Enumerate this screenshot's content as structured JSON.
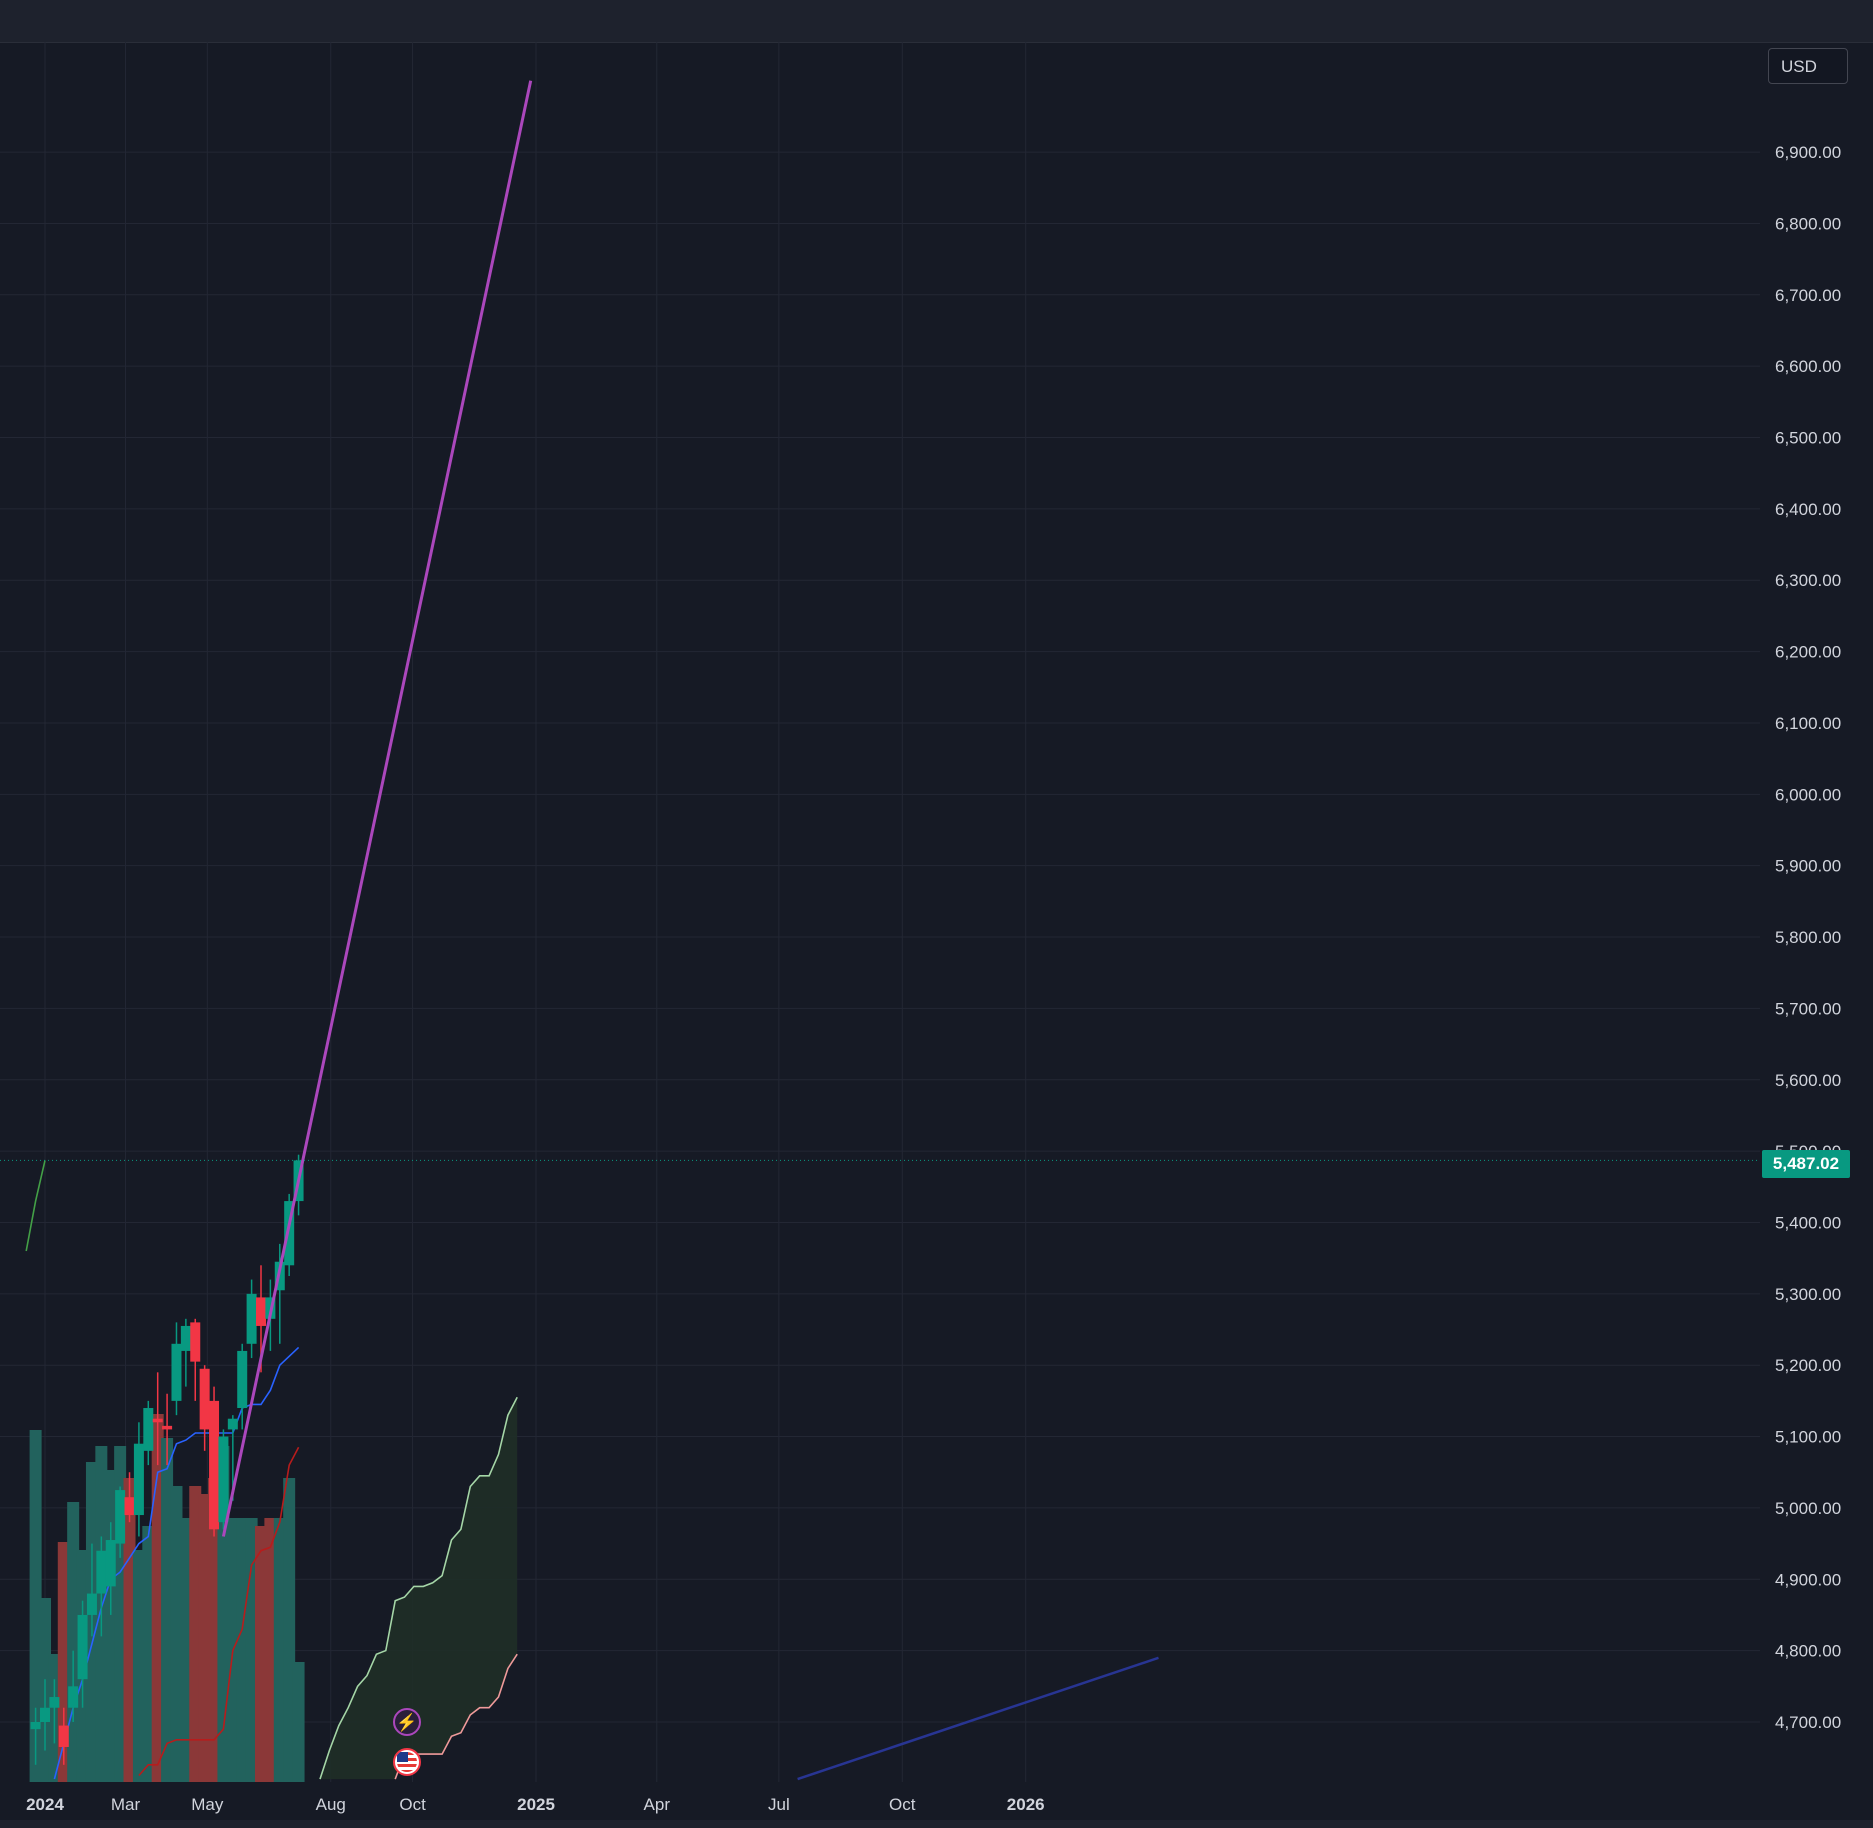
{
  "toolbar": {
    "currency_label": "USD"
  },
  "current_price": {
    "label": "5,487.02",
    "value": 5487.02,
    "color": "#089981"
  },
  "colors": {
    "background": "#161a25",
    "grid": "#232734",
    "up": "#089981",
    "down": "#f23645",
    "volume_up": "#22625d",
    "volume_down": "#8b3838",
    "tenkan": "#2962ff",
    "kijun": "#b71c1c",
    "trendline": "#ab47bc",
    "cloud_upper": "#a5d6a7",
    "cloud_lower": "#ef9a9a",
    "cloud_fill": "#1f2f27",
    "long_trend": "#283593",
    "green_line": "#43a047",
    "axis_text": "#d1d4dc"
  },
  "icons": {
    "events": [
      "lightning-icon",
      "us-flag-icon"
    ]
  },
  "chart_data": {
    "type": "candlestick",
    "title": "",
    "xlabel": "",
    "ylabel": "",
    "ylim": [
      4620,
      7020
    ],
    "yticks": [
      "4,700.00",
      "4,800.00",
      "4,900.00",
      "5,000.00",
      "5,100.00",
      "5,200.00",
      "5,300.00",
      "5,400.00",
      "5,500.00",
      "5,600.00",
      "5,700.00",
      "5,800.00",
      "5,900.00",
      "6,000.00",
      "6,100.00",
      "6,200.00",
      "6,300.00",
      "6,400.00",
      "6,500.00",
      "6,600.00",
      "6,700.00",
      "6,800.00",
      "6,900.00"
    ],
    "xticks": [
      {
        "label": "2024",
        "date": "2024-01-01",
        "bold": true
      },
      {
        "label": "Mar",
        "date": "2024-03-01",
        "bold": false
      },
      {
        "label": "May",
        "date": "2024-05-01",
        "bold": false
      },
      {
        "label": "Aug",
        "date": "2024-08-01",
        "bold": false
      },
      {
        "label": "Oct",
        "date": "2024-10-01",
        "bold": false
      },
      {
        "label": "2025",
        "date": "2025-01-01",
        "bold": true
      },
      {
        "label": "Apr",
        "date": "2025-04-01",
        "bold": false
      },
      {
        "label": "Jul",
        "date": "2025-07-01",
        "bold": false
      },
      {
        "label": "Oct",
        "date": "2025-10-01",
        "bold": false
      },
      {
        "label": "2026",
        "date": "2026-01-01",
        "bold": true
      }
    ],
    "grid": true,
    "candles": [
      {
        "date": "2023-12-25",
        "open": 4690,
        "high": 4720,
        "low": 4640,
        "close": 4700
      },
      {
        "date": "2024-01-01",
        "open": 4700,
        "high": 4760,
        "low": 4660,
        "close": 4720
      },
      {
        "date": "2024-01-08",
        "open": 4720,
        "high": 4760,
        "low": 4670,
        "close": 4735
      },
      {
        "date": "2024-01-15",
        "open": 4695,
        "high": 4720,
        "low": 4640,
        "close": 4665
      },
      {
        "date": "2024-01-22",
        "open": 4720,
        "high": 4800,
        "low": 4700,
        "close": 4750
      },
      {
        "date": "2024-01-29",
        "open": 4760,
        "high": 4870,
        "low": 4720,
        "close": 4850
      },
      {
        "date": "2024-02-05",
        "open": 4850,
        "high": 4950,
        "low": 4820,
        "close": 4880
      },
      {
        "date": "2024-02-12",
        "open": 4880,
        "high": 4960,
        "low": 4820,
        "close": 4940
      },
      {
        "date": "2024-02-19",
        "open": 4890,
        "high": 4980,
        "low": 4850,
        "close": 4955
      },
      {
        "date": "2024-02-26",
        "open": 4950,
        "high": 5030,
        "low": 4930,
        "close": 5025
      },
      {
        "date": "2024-03-04",
        "open": 5015,
        "high": 5050,
        "low": 4980,
        "close": 4990
      },
      {
        "date": "2024-03-11",
        "open": 4990,
        "high": 5120,
        "low": 4960,
        "close": 5090
      },
      {
        "date": "2024-03-18",
        "open": 5080,
        "high": 5150,
        "low": 5060,
        "close": 5140
      },
      {
        "date": "2024-03-25",
        "open": 5125,
        "high": 5190,
        "low": 5060,
        "close": 5120
      },
      {
        "date": "2024-04-01",
        "open": 5115,
        "high": 5160,
        "low": 5060,
        "close": 5110
      },
      {
        "date": "2024-04-08",
        "open": 5150,
        "high": 5260,
        "low": 5130,
        "close": 5230
      },
      {
        "date": "2024-04-15",
        "open": 5220,
        "high": 5265,
        "low": 5170,
        "close": 5255
      },
      {
        "date": "2024-04-22",
        "open": 5260,
        "high": 5265,
        "low": 5150,
        "close": 5205
      },
      {
        "date": "2024-04-29",
        "open": 5195,
        "high": 5200,
        "low": 5080,
        "close": 5110
      },
      {
        "date": "2024-05-06",
        "open": 5150,
        "high": 5170,
        "low": 4960,
        "close": 4970
      },
      {
        "date": "2024-05-13",
        "open": 4980,
        "high": 5110,
        "low": 4970,
        "close": 5100
      },
      {
        "date": "2024-05-20",
        "open": 5110,
        "high": 5130,
        "low": 5010,
        "close": 5125
      },
      {
        "date": "2024-05-27",
        "open": 5140,
        "high": 5230,
        "low": 5110,
        "close": 5220
      },
      {
        "date": "2024-06-03",
        "open": 5230,
        "high": 5320,
        "low": 5210,
        "close": 5300
      },
      {
        "date": "2024-06-10",
        "open": 5295,
        "high": 5340,
        "low": 5190,
        "close": 5255
      },
      {
        "date": "2024-06-17",
        "open": 5265,
        "high": 5320,
        "low": 5220,
        "close": 5295
      },
      {
        "date": "2024-06-24",
        "open": 5305,
        "high": 5370,
        "low": 5230,
        "close": 5345
      },
      {
        "date": "2024-07-01",
        "open": 5340,
        "high": 5440,
        "low": 5325,
        "close": 5430
      },
      {
        "date": "2024-07-08",
        "open": 5430,
        "high": 5495,
        "low": 5410,
        "close": 5487.02
      }
    ],
    "volume_range": [
      0,
      100
    ],
    "volume": [
      {
        "date": "2023-12-25",
        "value": 88,
        "up": true
      },
      {
        "date": "2024-01-01",
        "value": 46,
        "up": true
      },
      {
        "date": "2024-01-08",
        "value": 32,
        "up": true
      },
      {
        "date": "2024-01-15",
        "value": 60,
        "up": false
      },
      {
        "date": "2024-01-22",
        "value": 70,
        "up": true
      },
      {
        "date": "2024-01-29",
        "value": 58,
        "up": true
      },
      {
        "date": "2024-02-05",
        "value": 80,
        "up": true
      },
      {
        "date": "2024-02-12",
        "value": 84,
        "up": true
      },
      {
        "date": "2024-02-19",
        "value": 78,
        "up": true
      },
      {
        "date": "2024-02-26",
        "value": 84,
        "up": true
      },
      {
        "date": "2024-03-04",
        "value": 76,
        "up": false
      },
      {
        "date": "2024-03-11",
        "value": 58,
        "up": true
      },
      {
        "date": "2024-03-18",
        "value": 64,
        "up": true
      },
      {
        "date": "2024-03-25",
        "value": 92,
        "up": false
      },
      {
        "date": "2024-04-01",
        "value": 86,
        "up": true
      },
      {
        "date": "2024-04-08",
        "value": 74,
        "up": true
      },
      {
        "date": "2024-04-15",
        "value": 66,
        "up": true
      },
      {
        "date": "2024-04-22",
        "value": 74,
        "up": false
      },
      {
        "date": "2024-04-29",
        "value": 72,
        "up": false
      },
      {
        "date": "2024-05-06",
        "value": 76,
        "up": false
      },
      {
        "date": "2024-05-13",
        "value": 84,
        "up": true
      },
      {
        "date": "2024-05-20",
        "value": 66,
        "up": true
      },
      {
        "date": "2024-05-27",
        "value": 66,
        "up": true
      },
      {
        "date": "2024-06-03",
        "value": 66,
        "up": true
      },
      {
        "date": "2024-06-10",
        "value": 64,
        "up": false
      },
      {
        "date": "2024-06-17",
        "value": 66,
        "up": false
      },
      {
        "date": "2024-06-24",
        "value": 66,
        "up": true
      },
      {
        "date": "2024-07-01",
        "value": 76,
        "up": true
      },
      {
        "date": "2024-07-08",
        "value": 30,
        "up": true
      }
    ],
    "series": [
      {
        "key": "tenkan",
        "points": [
          {
            "date": "2024-01-08",
            "value": 4620
          },
          {
            "date": "2024-01-15",
            "value": 4670
          },
          {
            "date": "2024-01-22",
            "value": 4720
          },
          {
            "date": "2024-01-29",
            "value": 4760
          },
          {
            "date": "2024-02-05",
            "value": 4810
          },
          {
            "date": "2024-02-12",
            "value": 4860
          },
          {
            "date": "2024-02-19",
            "value": 4900
          },
          {
            "date": "2024-02-26",
            "value": 4910
          },
          {
            "date": "2024-03-04",
            "value": 4930
          },
          {
            "date": "2024-03-11",
            "value": 4950
          },
          {
            "date": "2024-03-18",
            "value": 4960
          },
          {
            "date": "2024-03-25",
            "value": 5050
          },
          {
            "date": "2024-04-01",
            "value": 5055
          },
          {
            "date": "2024-04-08",
            "value": 5090
          },
          {
            "date": "2024-04-15",
            "value": 5095
          },
          {
            "date": "2024-04-22",
            "value": 5105
          },
          {
            "date": "2024-04-29",
            "value": 5105
          },
          {
            "date": "2024-05-06",
            "value": 5105
          },
          {
            "date": "2024-05-13",
            "value": 5105
          },
          {
            "date": "2024-05-20",
            "value": 5105
          },
          {
            "date": "2024-05-27",
            "value": 5140
          },
          {
            "date": "2024-06-03",
            "value": 5145
          },
          {
            "date": "2024-06-10",
            "value": 5145
          },
          {
            "date": "2024-06-17",
            "value": 5165
          },
          {
            "date": "2024-06-24",
            "value": 5200
          },
          {
            "date": "2024-07-08",
            "value": 5225
          }
        ]
      },
      {
        "key": "kijun",
        "points": [
          {
            "date": "2024-03-11",
            "value": 4625
          },
          {
            "date": "2024-03-18",
            "value": 4640
          },
          {
            "date": "2024-03-25",
            "value": 4640
          },
          {
            "date": "2024-04-01",
            "value": 4670
          },
          {
            "date": "2024-04-08",
            "value": 4675
          },
          {
            "date": "2024-04-15",
            "value": 4675
          },
          {
            "date": "2024-04-22",
            "value": 4675
          },
          {
            "date": "2024-04-29",
            "value": 4675
          },
          {
            "date": "2024-05-06",
            "value": 4675
          },
          {
            "date": "2024-05-13",
            "value": 4690
          },
          {
            "date": "2024-05-20",
            "value": 4800
          },
          {
            "date": "2024-05-27",
            "value": 4830
          },
          {
            "date": "2024-06-03",
            "value": 4920
          },
          {
            "date": "2024-06-10",
            "value": 4940
          },
          {
            "date": "2024-06-17",
            "value": 4945
          },
          {
            "date": "2024-06-24",
            "value": 4980
          },
          {
            "date": "2024-07-01",
            "value": 5060
          },
          {
            "date": "2024-07-08",
            "value": 5085
          }
        ]
      },
      {
        "key": "cloud_upper",
        "points": [
          {
            "date": "2024-07-24",
            "value": 4620
          },
          {
            "date": "2024-07-31",
            "value": 4660
          },
          {
            "date": "2024-08-07",
            "value": 4695
          },
          {
            "date": "2024-08-14",
            "value": 4720
          },
          {
            "date": "2024-08-21",
            "value": 4750
          },
          {
            "date": "2024-08-28",
            "value": 4765
          },
          {
            "date": "2024-09-04",
            "value": 4795
          },
          {
            "date": "2024-09-11",
            "value": 4800
          },
          {
            "date": "2024-09-18",
            "value": 4870
          },
          {
            "date": "2024-09-25",
            "value": 4875
          },
          {
            "date": "2024-10-02",
            "value": 4890
          },
          {
            "date": "2024-10-09",
            "value": 4890
          },
          {
            "date": "2024-10-16",
            "value": 4895
          },
          {
            "date": "2024-10-23",
            "value": 4905
          },
          {
            "date": "2024-10-30",
            "value": 4955
          },
          {
            "date": "2024-11-06",
            "value": 4970
          },
          {
            "date": "2024-11-13",
            "value": 5030
          },
          {
            "date": "2024-11-20",
            "value": 5045
          },
          {
            "date": "2024-11-27",
            "value": 5045
          },
          {
            "date": "2024-12-04",
            "value": 5075
          },
          {
            "date": "2024-12-11",
            "value": 5130
          },
          {
            "date": "2024-12-18",
            "value": 5155
          }
        ]
      },
      {
        "key": "cloud_lower",
        "points": [
          {
            "date": "2024-09-18",
            "value": 4620
          },
          {
            "date": "2024-09-25",
            "value": 4655
          },
          {
            "date": "2024-10-02",
            "value": 4655
          },
          {
            "date": "2024-10-09",
            "value": 4655
          },
          {
            "date": "2024-10-16",
            "value": 4655
          },
          {
            "date": "2024-10-23",
            "value": 4655
          },
          {
            "date": "2024-10-30",
            "value": 4680
          },
          {
            "date": "2024-11-06",
            "value": 4685
          },
          {
            "date": "2024-11-13",
            "value": 4710
          },
          {
            "date": "2024-11-20",
            "value": 4720
          },
          {
            "date": "2024-11-27",
            "value": 4720
          },
          {
            "date": "2024-12-04",
            "value": 4735
          },
          {
            "date": "2024-12-11",
            "value": 4775
          },
          {
            "date": "2024-12-18",
            "value": 4795
          }
        ]
      },
      {
        "key": "green_line",
        "points": [
          {
            "date": "2023-12-18",
            "value": 5360
          },
          {
            "date": "2023-12-25",
            "value": 5430
          },
          {
            "date": "2024-01-01",
            "value": 5487
          }
        ]
      },
      {
        "key": "trendline",
        "points": [
          {
            "date": "2024-05-13",
            "value": 4960
          },
          {
            "date": "2024-12-28",
            "value": 7000
          }
        ]
      },
      {
        "key": "long_trend",
        "points": [
          {
            "date": "2025-07-15",
            "value": 4620
          },
          {
            "date": "2026-04-10",
            "value": 4790
          }
        ]
      }
    ]
  }
}
